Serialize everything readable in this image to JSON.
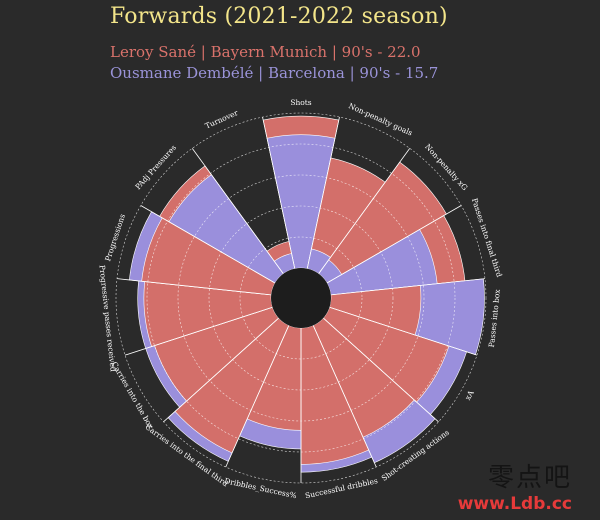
{
  "header": {
    "title": "Forwards (2021-2022 season)",
    "player1": "Leroy Sané | Bayern Munich | 90's - 22.0",
    "player2": "Ousmane Dembélé | Barcelona | 90's - 15.7"
  },
  "watermark": {
    "text": "零点吧",
    "url": "www.Ldb.cc"
  },
  "colors": {
    "background": "#2a2a2a",
    "player1": "#d36f6a",
    "player2": "#9a8fdc",
    "player2_dark": "#7a73c8",
    "title": "#f3e58a",
    "grid": "#ffffff",
    "hole": "#1d1d1d"
  },
  "chart_data": {
    "type": "polar-bar",
    "title": "Forwards (2021-2022 season)",
    "categories": [
      "Shots",
      "Non-penalty goals",
      "Non-penalty xG",
      "Passes into final third",
      "Passes into box",
      "xA",
      "Shot-creating actions",
      "Successful dribbles",
      "Dribbles_Success%",
      "Carries into the final third",
      "Carries into the box",
      "Progressive passes received",
      "Progressions",
      "PAdj Pressures",
      "Turnover"
    ],
    "series": [
      {
        "name": "Leroy Sané | Bayern Munich | 90's - 22.0",
        "values": [
          98,
          73,
          89,
          87,
          58,
          81,
          79,
          88,
          66,
          90,
          80,
          82,
          84,
          86,
          18
        ]
      },
      {
        "name": "Ousmane Dembélé | Barcelona | 90's - 15.7",
        "values": [
          86,
          13,
          11,
          69,
          99,
          93,
          97,
          93,
          78,
          96,
          86,
          86,
          92,
          79,
          10
        ]
      }
    ],
    "rlim": [
      0,
      100
    ],
    "grid": true
  }
}
